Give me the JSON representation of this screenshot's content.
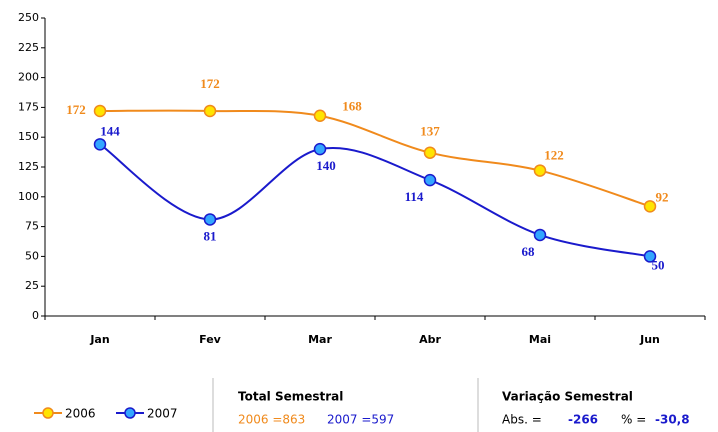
{
  "chart_data": {
    "type": "line",
    "categories": [
      "Jan",
      "Fev",
      "Mar",
      "Abr",
      "Mai",
      "Jun"
    ],
    "series": [
      {
        "name": "2006",
        "color": "#f08a1c",
        "marker_fill": "#ffe400",
        "values": [
          172,
          172,
          168,
          137,
          122,
          92
        ]
      },
      {
        "name": "2007",
        "color": "#1a1acc",
        "marker_fill": "#33a6ff",
        "values": [
          144,
          81,
          140,
          114,
          68,
          50
        ]
      }
    ],
    "ylim": [
      0,
      250
    ],
    "yticks": [
      0,
      25,
      50,
      75,
      100,
      125,
      150,
      175,
      200,
      225,
      250
    ],
    "grid": false,
    "smooth": true,
    "legend": "bottom-left"
  },
  "summary": {
    "total_title": "Total Semestral",
    "total_2006": "2006 =863",
    "total_2007": "2007 =597",
    "variation_title": "Variação Semestral",
    "abs_label": "Abs. =",
    "abs_value": "-266",
    "pct_label": "% =",
    "pct_value": "-30,8"
  }
}
